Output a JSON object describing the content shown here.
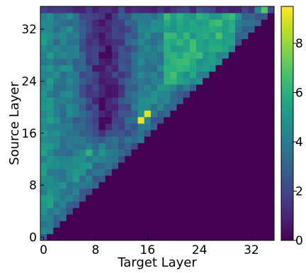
{
  "chart_data": {
    "type": "heatmap",
    "xlabel": "Target Layer",
    "ylabel": "Source Layer",
    "x_ticks": [
      0,
      8,
      16,
      24,
      32
    ],
    "y_ticks": [
      0,
      8,
      16,
      24,
      32
    ],
    "grid_size": 36,
    "xlim": [
      0,
      35
    ],
    "ylim": [
      0,
      35
    ],
    "colorbar": {
      "min": 0,
      "max": 9.5,
      "ticks": [
        0,
        2,
        4,
        6,
        8
      ],
      "colormap": "viridis"
    },
    "lower_triangle_value": 0,
    "notable_cells": [
      {
        "source": 18,
        "target": 15,
        "value": 9.2
      },
      {
        "source": 19,
        "target": 16,
        "value": 9.0
      },
      {
        "source": 35,
        "target": 34,
        "value": 7.0
      },
      {
        "source": 30,
        "target": 23,
        "value": 6.5
      },
      {
        "source": 13,
        "target": 7,
        "value": 6.0
      }
    ]
  }
}
